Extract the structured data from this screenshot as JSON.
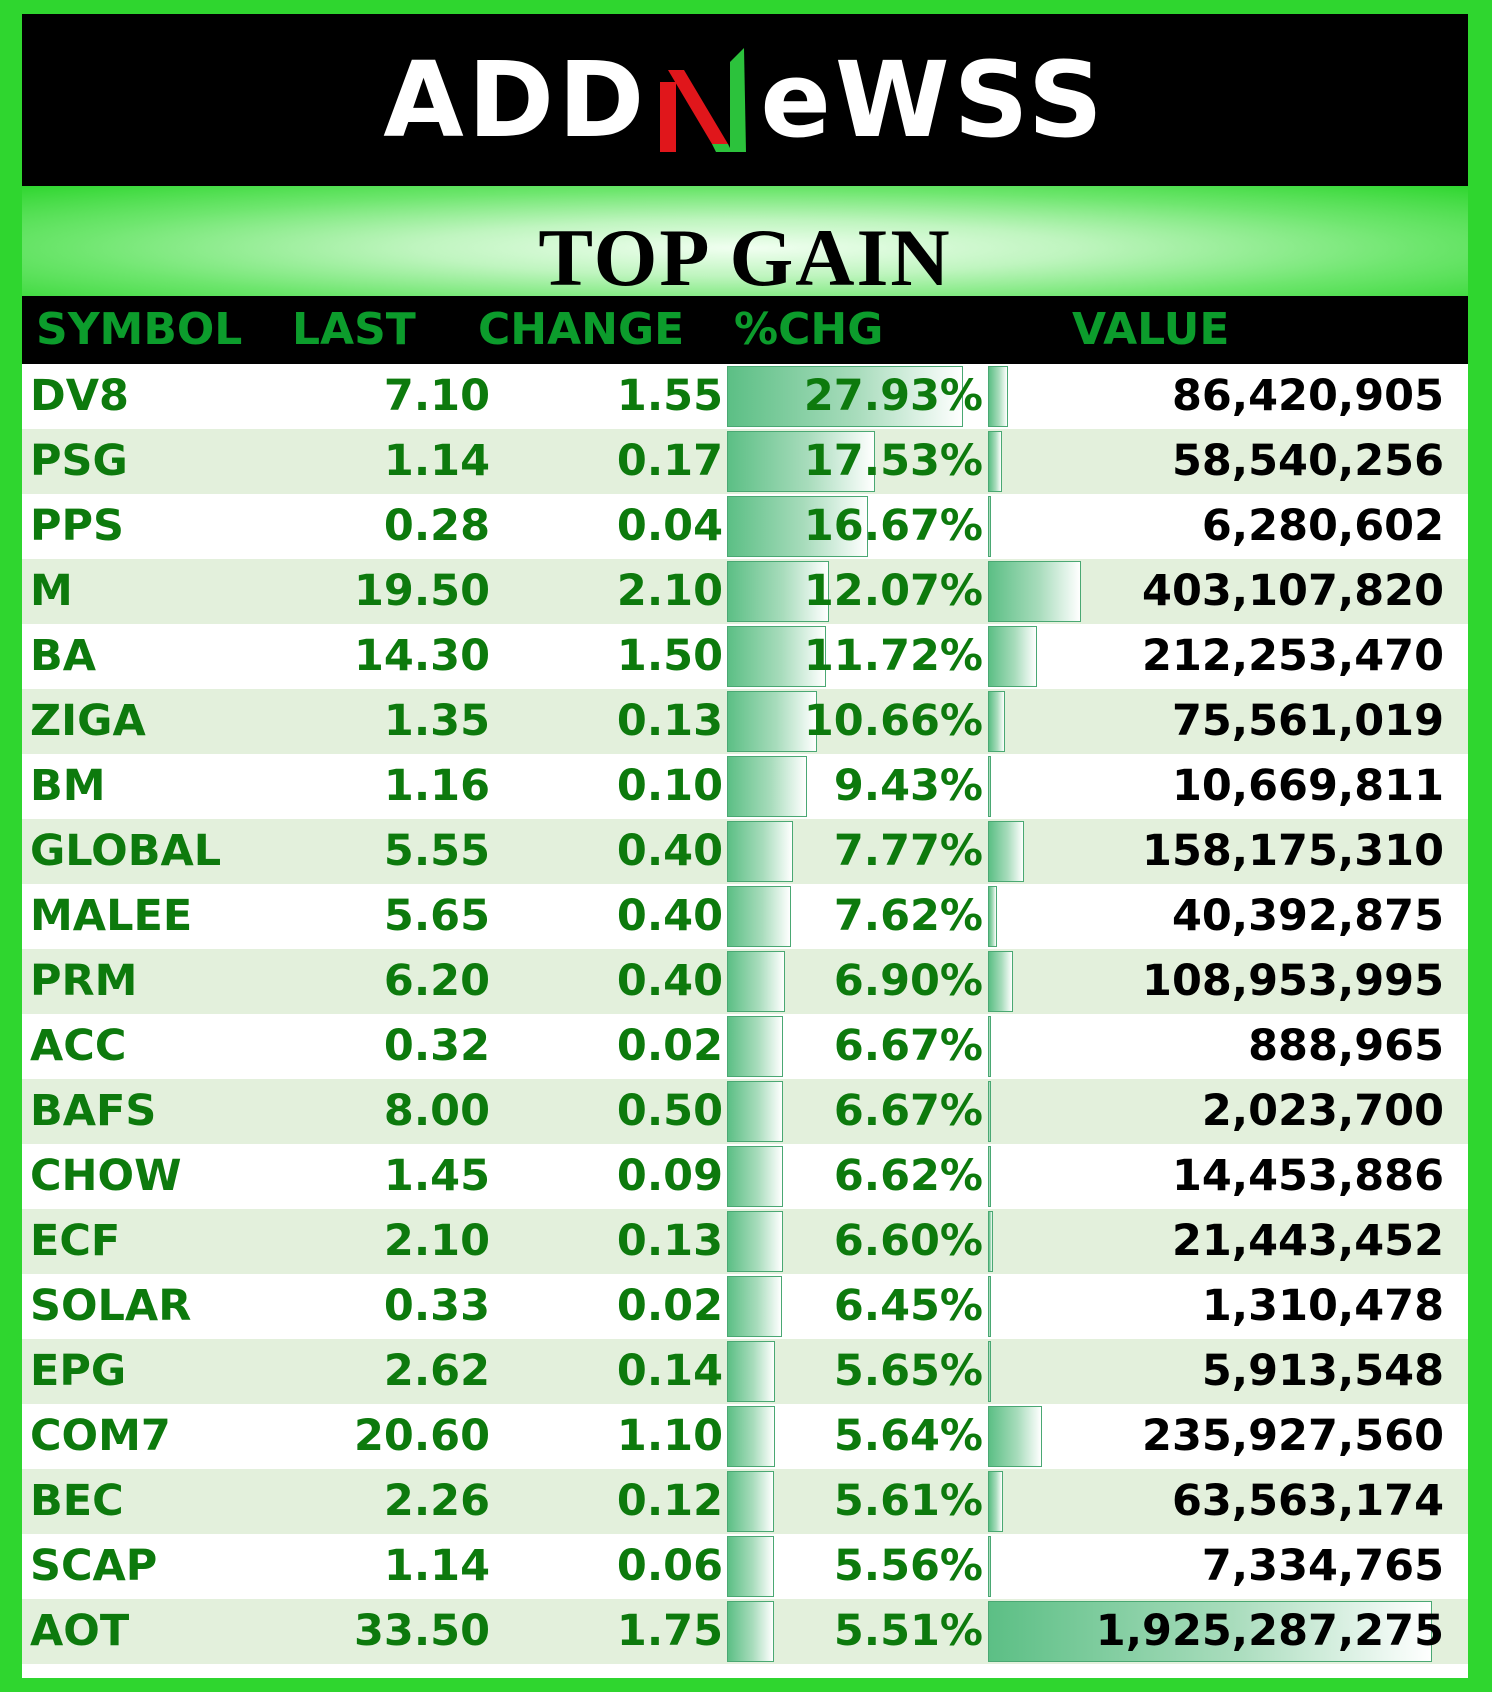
{
  "brand": {
    "logo_left": "ADD",
    "logo_right": "eWSS",
    "logo_colors": {
      "red": "#e0161b",
      "green": "#2cc23c",
      "white": "#ffffff"
    }
  },
  "title": "TOP GAIN",
  "colors": {
    "outer_border": "#2fd62f",
    "header_text": "#0c9c2c",
    "cell_text": "#0d7a0d",
    "value_text": "#000000",
    "row_alt": "#e3f0dc",
    "bar": "#5cbf85"
  },
  "columns": {
    "symbol": "SYMBOL",
    "last": "LAST",
    "change": "CHANGE",
    "pct_change": "%CHG",
    "value": "VALUE"
  },
  "rows": [
    {
      "symbol": "DV8",
      "last": "7.10",
      "change": "1.55",
      "pct_change": "27.93%",
      "value": "86,420,905",
      "pct_num": 27.93,
      "value_num": 86420905
    },
    {
      "symbol": "PSG",
      "last": "1.14",
      "change": "0.17",
      "pct_change": "17.53%",
      "value": "58,540,256",
      "pct_num": 17.53,
      "value_num": 58540256
    },
    {
      "symbol": "PPS",
      "last": "0.28",
      "change": "0.04",
      "pct_change": "16.67%",
      "value": "6,280,602",
      "pct_num": 16.67,
      "value_num": 6280602
    },
    {
      "symbol": "M",
      "last": "19.50",
      "change": "2.10",
      "pct_change": "12.07%",
      "value": "403,107,820",
      "pct_num": 12.07,
      "value_num": 403107820
    },
    {
      "symbol": "BA",
      "last": "14.30",
      "change": "1.50",
      "pct_change": "11.72%",
      "value": "212,253,470",
      "pct_num": 11.72,
      "value_num": 212253470
    },
    {
      "symbol": "ZIGA",
      "last": "1.35",
      "change": "0.13",
      "pct_change": "10.66%",
      "value": "75,561,019",
      "pct_num": 10.66,
      "value_num": 75561019
    },
    {
      "symbol": "BM",
      "last": "1.16",
      "change": "0.10",
      "pct_change": "9.43%",
      "value": "10,669,811",
      "pct_num": 9.43,
      "value_num": 10669811
    },
    {
      "symbol": "GLOBAL",
      "last": "5.55",
      "change": "0.40",
      "pct_change": "7.77%",
      "value": "158,175,310",
      "pct_num": 7.77,
      "value_num": 158175310
    },
    {
      "symbol": "MALEE",
      "last": "5.65",
      "change": "0.40",
      "pct_change": "7.62%",
      "value": "40,392,875",
      "pct_num": 7.62,
      "value_num": 40392875
    },
    {
      "symbol": "PRM",
      "last": "6.20",
      "change": "0.40",
      "pct_change": "6.90%",
      "value": "108,953,995",
      "pct_num": 6.9,
      "value_num": 108953995
    },
    {
      "symbol": "ACC",
      "last": "0.32",
      "change": "0.02",
      "pct_change": "6.67%",
      "value": "888,965",
      "pct_num": 6.67,
      "value_num": 888965
    },
    {
      "symbol": "BAFS",
      "last": "8.00",
      "change": "0.50",
      "pct_change": "6.67%",
      "value": "2,023,700",
      "pct_num": 6.67,
      "value_num": 2023700
    },
    {
      "symbol": "CHOW",
      "last": "1.45",
      "change": "0.09",
      "pct_change": "6.62%",
      "value": "14,453,886",
      "pct_num": 6.62,
      "value_num": 14453886
    },
    {
      "symbol": "ECF",
      "last": "2.10",
      "change": "0.13",
      "pct_change": "6.60%",
      "value": "21,443,452",
      "pct_num": 6.6,
      "value_num": 21443452
    },
    {
      "symbol": "SOLAR",
      "last": "0.33",
      "change": "0.02",
      "pct_change": "6.45%",
      "value": "1,310,478",
      "pct_num": 6.45,
      "value_num": 1310478
    },
    {
      "symbol": "EPG",
      "last": "2.62",
      "change": "0.14",
      "pct_change": "5.65%",
      "value": "5,913,548",
      "pct_num": 5.65,
      "value_num": 5913548
    },
    {
      "symbol": "COM7",
      "last": "20.60",
      "change": "1.10",
      "pct_change": "5.64%",
      "value": "235,927,560",
      "pct_num": 5.64,
      "value_num": 235927560
    },
    {
      "symbol": "BEC",
      "last": "2.26",
      "change": "0.12",
      "pct_change": "5.61%",
      "value": "63,563,174",
      "pct_num": 5.61,
      "value_num": 63563174
    },
    {
      "symbol": "SCAP",
      "last": "1.14",
      "change": "0.06",
      "pct_change": "5.56%",
      "value": "7,334,765",
      "pct_num": 5.56,
      "value_num": 7334765
    },
    {
      "symbol": "AOT",
      "last": "33.50",
      "change": "1.75",
      "pct_change": "5.51%",
      "value": "1,925,287,275",
      "pct_num": 5.51,
      "value_num": 1925287275
    }
  ]
}
